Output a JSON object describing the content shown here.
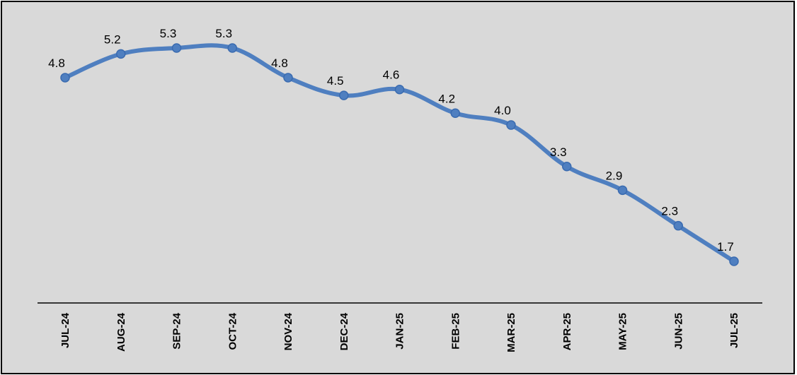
{
  "chart_data": {
    "type": "line",
    "categories": [
      "JUL-24",
      "AUG-24",
      "SEP-24",
      "OCT-24",
      "NOV-24",
      "DEC-24",
      "JAN-25",
      "FEB-25",
      "MAR-25",
      "APR-25",
      "MAY-25",
      "JUN-25",
      "JUL-25"
    ],
    "series": [
      {
        "values": [
          4.8,
          5.2,
          5.3,
          5.3,
          4.8,
          4.5,
          4.6,
          4.2,
          4.0,
          3.3,
          2.9,
          2.3,
          1.7
        ]
      }
    ],
    "data_labels": [
      "4.8",
      "5.2",
      "5.3",
      "5.3",
      "4.8",
      "4.5",
      "4.6",
      "4.2",
      "4.0",
      "3.3",
      "2.9",
      "2.3",
      "1.7"
    ],
    "title": "",
    "xlabel": "",
    "ylabel": "",
    "grid": false,
    "legend": "none",
    "smooth": true,
    "colors": {
      "line": "#4f7fc0",
      "marker": "#4f7fc0",
      "background": "#d9d9d9",
      "axis": "#000000"
    }
  }
}
